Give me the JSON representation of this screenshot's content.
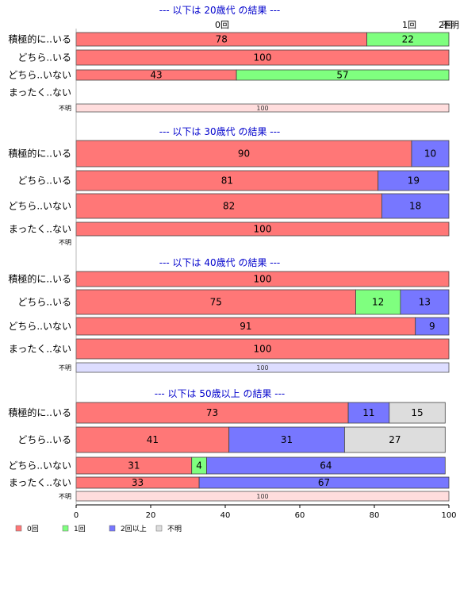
{
  "chart_data": {
    "type": "bar",
    "orientation": "horizontal",
    "stacked": true,
    "xlim": [
      0,
      100
    ],
    "x_ticks": [
      "0",
      "20",
      "40",
      "60",
      "80",
      "100"
    ],
    "top_labels": [
      "0回",
      "1回",
      "2回",
      "不明"
    ],
    "legend": [
      {
        "name": "0回",
        "color": "#ff7777"
      },
      {
        "name": "1回",
        "color": "#7fff7f"
      },
      {
        "name": "2回以上",
        "color": "#7777ff"
      },
      {
        "name": "不明",
        "color": "#dddddd"
      }
    ],
    "legend_position": "bottom-left",
    "series_colors": [
      "#ff7777",
      "#7fff7f",
      "#7777ff",
      "#dddddd"
    ],
    "groups": [
      {
        "title": "--- 以下は 20歳代 の結果 ---",
        "rows": [
          {
            "label": "積極的に..いる",
            "values": [
              78,
              22,
              0,
              0
            ]
          },
          {
            "label": "どちら..いる",
            "values": [
              100,
              0,
              0,
              0
            ]
          },
          {
            "label": "どちら..いない",
            "values": [
              43,
              57,
              0,
              0
            ]
          },
          {
            "label": "まったく..ない",
            "values": [
              0,
              0,
              0,
              0
            ]
          },
          {
            "label": "不明",
            "values": [
              100
            ],
            "small": true,
            "color": "#ffdddd"
          }
        ]
      },
      {
        "title": "--- 以下は 30歳代 の結果 ---",
        "rows": [
          {
            "label": "積極的に..いる",
            "values": [
              90,
              0,
              10,
              0
            ]
          },
          {
            "label": "どちら..いる",
            "values": [
              81,
              0,
              19,
              0
            ]
          },
          {
            "label": "どちら..いない",
            "values": [
              82,
              0,
              18,
              0
            ]
          },
          {
            "label": "まったく..ない",
            "values": [
              100,
              0,
              0,
              0
            ]
          },
          {
            "label": "不明",
            "values": [],
            "small": true
          }
        ]
      },
      {
        "title": "--- 以下は 40歳代 の結果 ---",
        "rows": [
          {
            "label": "積極的に..いる",
            "values": [
              100,
              0,
              0,
              0
            ]
          },
          {
            "label": "どちら..いる",
            "values": [
              75,
              12,
              13,
              0
            ]
          },
          {
            "label": "どちら..いない",
            "values": [
              91,
              0,
              9,
              0
            ]
          },
          {
            "label": "まったく..ない",
            "values": [
              100,
              0,
              0,
              0
            ]
          },
          {
            "label": "不明",
            "values": [
              100
            ],
            "small": true,
            "color": "#ddddff"
          }
        ]
      },
      {
        "title": "--- 以下は 50歳以上 の結果 ---",
        "rows": [
          {
            "label": "積極的に..いる",
            "values": [
              73,
              0,
              11,
              15
            ]
          },
          {
            "label": "どちら..いる",
            "values": [
              41,
              0,
              31,
              27
            ]
          },
          {
            "label": "どちら..いない",
            "values": [
              31,
              4,
              64,
              0
            ]
          },
          {
            "label": "まったく..ない",
            "values": [
              33,
              0,
              67,
              0
            ]
          },
          {
            "label": "不明",
            "values": [
              100
            ],
            "small": true,
            "color": "#ffdddd"
          }
        ]
      }
    ]
  }
}
